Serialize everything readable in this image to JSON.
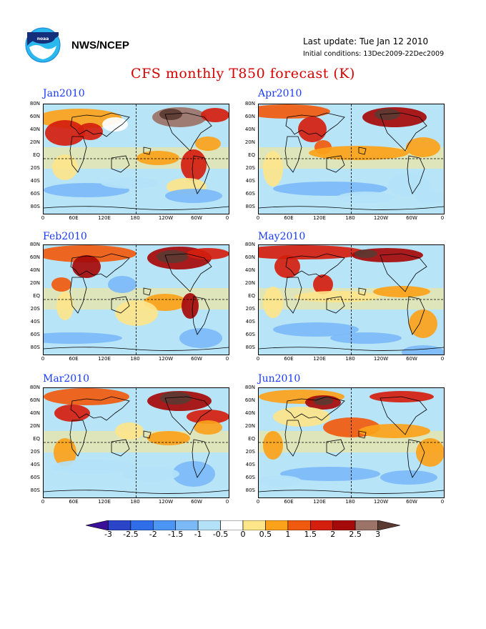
{
  "header": {
    "agency": "NWS/NCEP",
    "last_update": "Last update: Tue Jan 12 2010",
    "initial_conditions": "Initial conditions: 13Dec2009-22Dec2009",
    "title": "CFS monthly T850 forecast (K)"
  },
  "logo_icon": "noaa-logo-icon",
  "panels": [
    {
      "label": "Jan2010"
    },
    {
      "label": "Apr2010"
    },
    {
      "label": "Feb2010"
    },
    {
      "label": "May2010"
    },
    {
      "label": "Mar2010"
    },
    {
      "label": "Jun2010"
    }
  ],
  "lat_ticks": [
    "80N",
    "60N",
    "40N",
    "20N",
    "EQ",
    "20S",
    "40S",
    "60S",
    "80S"
  ],
  "lon_ticks": [
    "0",
    "60E",
    "120E",
    "180",
    "120W",
    "60W",
    "0"
  ],
  "colorbar": {
    "labels": [
      "-3",
      "-2.5",
      "-2",
      "-1.5",
      "-1",
      "-0.5",
      "0",
      "0.5",
      "1",
      "1.5",
      "2",
      "2.5",
      "3"
    ],
    "colors": [
      "#3a0f9a",
      "#2b45c8",
      "#2f6ee8",
      "#4c95f4",
      "#7cbaf7",
      "#b3e2f8",
      "#ffffff",
      "#fde58a",
      "#fba21a",
      "#f05a0e",
      "#d41e0e",
      "#a50a0a",
      "#9b7368",
      "#5b3a32"
    ]
  },
  "colors": {
    "title": "#d40000",
    "panel_label": "#1a3aff"
  }
}
